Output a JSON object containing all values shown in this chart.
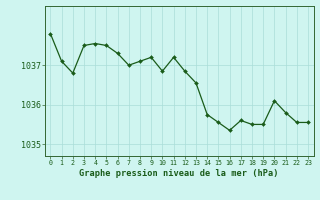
{
  "hours": [
    0,
    1,
    2,
    3,
    4,
    5,
    6,
    7,
    8,
    9,
    10,
    11,
    12,
    13,
    14,
    15,
    16,
    17,
    18,
    19,
    20,
    21,
    22,
    23
  ],
  "pressure": [
    1037.8,
    1037.1,
    1036.8,
    1037.5,
    1037.55,
    1037.5,
    1037.3,
    1037.0,
    1037.1,
    1037.2,
    1036.85,
    1037.2,
    1036.85,
    1036.55,
    1035.75,
    1035.55,
    1035.35,
    1035.6,
    1035.5,
    1035.5,
    1036.1,
    1035.8,
    1035.55,
    1035.55
  ],
  "line_color": "#1a5c1a",
  "marker_color": "#1a5c1a",
  "bg_color": "#cff5f0",
  "grid_color": "#aaddd8",
  "tick_label_color": "#1a5c1a",
  "xlabel": "Graphe pression niveau de la mer (hPa)",
  "xlabel_color": "#1a5c1a",
  "ylim": [
    1034.7,
    1038.5
  ],
  "yticks": [
    1035,
    1036,
    1037
  ],
  "xlim": [
    -0.5,
    23.5
  ],
  "xticks": [
    0,
    1,
    2,
    3,
    4,
    5,
    6,
    7,
    8,
    9,
    10,
    11,
    12,
    13,
    14,
    15,
    16,
    17,
    18,
    19,
    20,
    21,
    22,
    23
  ],
  "spine_color": "#336633"
}
